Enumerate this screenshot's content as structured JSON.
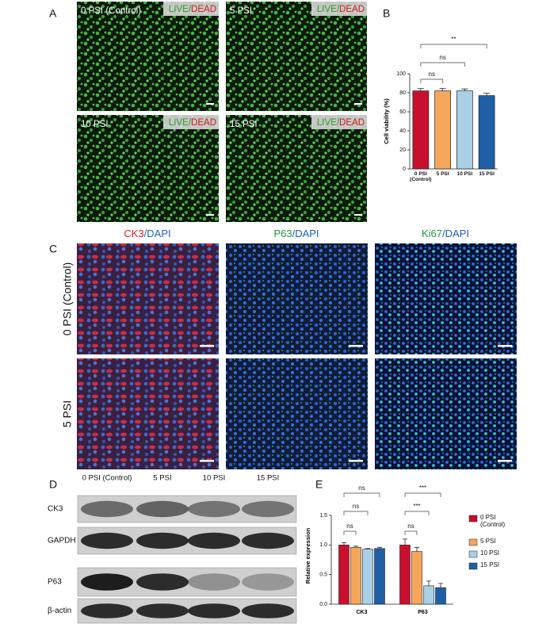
{
  "panel_labels": [
    "A",
    "B",
    "C",
    "D",
    "E"
  ],
  "live_dead": {
    "tiles": [
      "0 PSI (Control)",
      "5 PSI",
      "10 PSI",
      "15 PSI"
    ],
    "stain": [
      "LIVE",
      "/",
      "DEAD"
    ]
  },
  "immuno": {
    "columns": [
      [
        "CK3",
        "/",
        "DAPI"
      ],
      [
        "P63",
        "/",
        "DAPI"
      ],
      [
        "Ki67",
        "/",
        "DAPI"
      ]
    ],
    "rows": [
      "0 PSI (Control)",
      "5 PSI"
    ]
  },
  "blot": {
    "columns": [
      "0 PSI (Control)",
      "5 PSI",
      "10 PSI",
      "15 PSI"
    ],
    "rows": [
      "CK3",
      "GAPDH",
      "P63",
      "β-actin"
    ]
  },
  "chart_data": [
    {
      "type": "bar",
      "y_label": "Cell viability (%)",
      "categories": [
        "0 PSI (Control)",
        "5 PSI",
        "10 PSI",
        "15 PSI"
      ],
      "values": [
        82,
        82,
        82,
        77
      ],
      "errors": [
        2.5,
        2.5,
        2,
        2.5
      ],
      "colors": [
        "#c8102e",
        "#f5a65b",
        "#a9d0e6",
        "#1f5fa6"
      ],
      "ylim": [
        0,
        100
      ],
      "yticks": [
        0,
        20,
        40,
        60,
        80,
        100
      ],
      "annotations": [
        "ns",
        "ns",
        "**"
      ]
    },
    {
      "type": "grouped_bar",
      "y_label": "Relative expression",
      "categories": [
        "CK3",
        "P63"
      ],
      "series": [
        {
          "name": "0 PSI (Control)",
          "color": "#c8102e",
          "values": [
            1.0,
            1.0
          ],
          "errors": [
            0.04,
            0.1
          ]
        },
        {
          "name": "5 PSI",
          "color": "#f5a65b",
          "values": [
            0.96,
            0.89
          ],
          "errors": [
            0.02,
            0.07
          ]
        },
        {
          "name": "10 PSI",
          "color": "#a9d0e6",
          "values": [
            0.93,
            0.31
          ],
          "errors": [
            0.01,
            0.08
          ]
        },
        {
          "name": "15 PSI",
          "color": "#1f5fa6",
          "values": [
            0.94,
            0.28
          ],
          "errors": [
            0.02,
            0.07
          ]
        }
      ],
      "ylim": [
        0,
        1.5
      ],
      "yticks": [
        {
          "value": 0,
          "label": "0.0"
        },
        0.5,
        {
          "value": 1,
          "label": "1.0"
        },
        1.5
      ],
      "annotations": [
        [
          "ns",
          "ns",
          "ns"
        ],
        [
          "ns",
          "***",
          "***"
        ]
      ]
    }
  ]
}
